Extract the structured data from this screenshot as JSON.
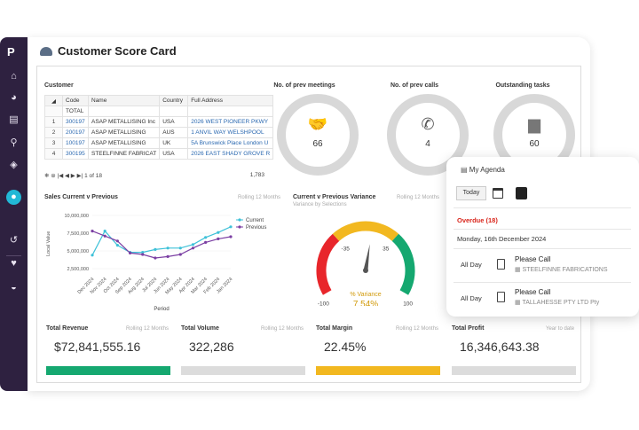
{
  "page": {
    "title": "Customer Score Card"
  },
  "sidebar": {
    "logo": "P",
    "items": [
      "home-icon",
      "pie-chart-icon",
      "report-icon",
      "lookup-icon",
      "tag-icon",
      "user-icon",
      "history-icon",
      "heart-icon",
      "dashboard-icon"
    ]
  },
  "customer": {
    "label": "Customer",
    "headers": [
      "Code",
      "Name",
      "Country",
      "Full Address"
    ],
    "total_label": "TOTAL",
    "rows": [
      {
        "idx": "1",
        "code": "300197",
        "name": "ASAP METALLISING Inc",
        "country": "USA",
        "address": "2026 WEST PIONEER PKWY"
      },
      {
        "idx": "2",
        "code": "200197",
        "name": "ASAP METALLISING",
        "country": "AUS",
        "address": "1 ANVIL WAY WELSHPOOL"
      },
      {
        "idx": "3",
        "code": "100197",
        "name": "ASAP METALLISING",
        "country": "UK",
        "address": "5A Brunswick Place London U"
      },
      {
        "idx": "4",
        "code": "300195",
        "name": "STEELFINNE FABRICAT",
        "country": "USA",
        "address": "2026 EAST SHADY GROVE R"
      }
    ],
    "pager": "1 of 18",
    "count": "1,783"
  },
  "kpis": [
    {
      "title": "No. of prev meetings",
      "value": "66",
      "icon": "handshake-icon"
    },
    {
      "title": "No. of prev calls",
      "value": "4",
      "icon": "phone-icon"
    },
    {
      "title": "Outstanding tasks",
      "value": "60",
      "icon": "document-icon"
    }
  ],
  "sales": {
    "title": "Sales Current v Previous",
    "sub": "Rolling 12 Months",
    "ylabel": "Local Value",
    "xlabel": "Period",
    "legend_current": "Current",
    "legend_previous": "Previous"
  },
  "chart_data": {
    "type": "line",
    "title": "Sales Current v Previous",
    "xlabel": "Period",
    "ylabel": "Local Value",
    "x": [
      "Dec 2024",
      "Nov 2024",
      "Oct 2024",
      "Sep 2024",
      "Aug 2024",
      "Jul 2024",
      "Jun 2024",
      "May 2024",
      "Apr 2024",
      "Mar 2024",
      "Feb 2024",
      "Jan 2024"
    ],
    "yticks": [
      "10,000,000",
      "7,500,000",
      "5,000,000",
      "2,500,000"
    ],
    "ylim": [
      1500000,
      10500000
    ],
    "series": [
      {
        "name": "Current",
        "color": "#3ec1d8",
        "values": [
          4400000,
          7800000,
          5800000,
          4800000,
          4800000,
          5200000,
          5400000,
          5400000,
          5900000,
          6900000,
          7600000,
          8400000
        ]
      },
      {
        "name": "Previous",
        "color": "#7b3fa3",
        "values": [
          7800000,
          7100000,
          6400000,
          4700000,
          4500000,
          4000000,
          4200000,
          4500000,
          5400000,
          6200000,
          6700000,
          7000000
        ]
      }
    ]
  },
  "variance": {
    "title": "Current v Previous Variance",
    "sub": "Rolling 12 Months",
    "sub2": "Variance by Selections",
    "ticks": [
      "-100",
      "-35",
      "35",
      "100"
    ],
    "label": "% Variance",
    "value": "7.54%",
    "needle_value": 7.54,
    "colors": {
      "low": "#e8262b",
      "mid": "#f2b820",
      "high": "#15a870"
    }
  },
  "totals": [
    {
      "label": "Total Revenue",
      "sub": "Rolling 12 Months",
      "value": "$72,841,555.16",
      "color": "#15a870"
    },
    {
      "label": "Total Volume",
      "sub": "Rolling 12 Months",
      "value": "322,286",
      "color": "#dcdcdc"
    },
    {
      "label": "Total Margin",
      "sub": "Rolling 12 Months",
      "value": "22.45%",
      "color": "#f2b820"
    },
    {
      "label": "Total Profit",
      "sub": "Year to date",
      "value": "16,346,643.38",
      "color": "#dcdcdc"
    }
  ],
  "agenda": {
    "title": "My Agenda",
    "today": "Today",
    "overdue": "Overdue (18)",
    "date": "Monday, 16th December 2024",
    "events": [
      {
        "time": "All Day",
        "title": "Please Call",
        "company": "STEELFINNE FABRICATIONS"
      },
      {
        "time": "All Day",
        "title": "Please Call",
        "company": "TALLAHESSE PTY LTD Pty"
      }
    ]
  }
}
